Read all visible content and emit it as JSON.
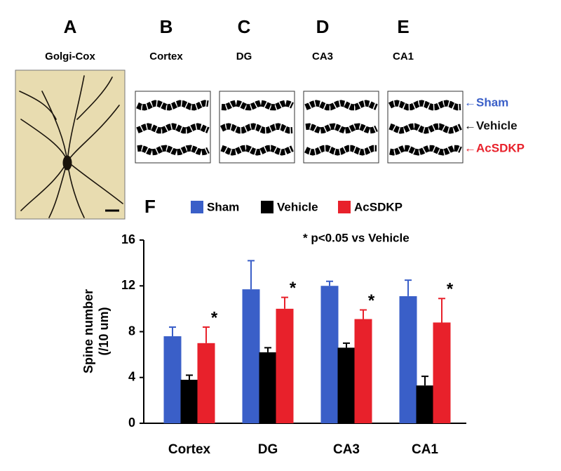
{
  "panels": [
    {
      "letter": "A",
      "subtitle": "Golgi-Cox"
    },
    {
      "letter": "B",
      "subtitle": "Cortex"
    },
    {
      "letter": "C",
      "subtitle": "DG"
    },
    {
      "letter": "D",
      "subtitle": "CA3"
    },
    {
      "letter": "E",
      "subtitle": "CA1"
    }
  ],
  "image_labels": [
    {
      "text": "←Sham",
      "color": "#3a5fc8"
    },
    {
      "text": "←Vehicle",
      "color": "#111111"
    },
    {
      "text": "←AcSDKP",
      "color": "#e8212b"
    }
  ],
  "chart_data": {
    "type": "bar",
    "panel_label": "F",
    "annotation": "* p<0.05 vs Vehicle",
    "y_label": [
      "Spine number",
      "(/10 um)"
    ],
    "categories": [
      "Cortex",
      "DG",
      "CA3",
      "CA1"
    ],
    "series": [
      {
        "name": "Sham",
        "color": "#3a5fc8",
        "values": [
          7.6,
          11.7,
          12.0,
          11.1
        ],
        "errors": [
          0.8,
          2.5,
          0.4,
          1.4
        ]
      },
      {
        "name": "Vehicle",
        "color": "#000000",
        "values": [
          3.8,
          6.2,
          6.6,
          3.3
        ],
        "errors": [
          0.4,
          0.4,
          0.4,
          0.8
        ]
      },
      {
        "name": "AcSDKP",
        "color": "#e8212b",
        "values": [
          7.0,
          10.0,
          9.1,
          8.8
        ],
        "errors": [
          1.4,
          1.0,
          0.8,
          2.1
        ]
      }
    ],
    "significance": [
      "*",
      "*",
      "*",
      "*"
    ],
    "ylim": [
      0,
      16
    ],
    "yticks": [
      0,
      4,
      8,
      12,
      16
    ]
  }
}
